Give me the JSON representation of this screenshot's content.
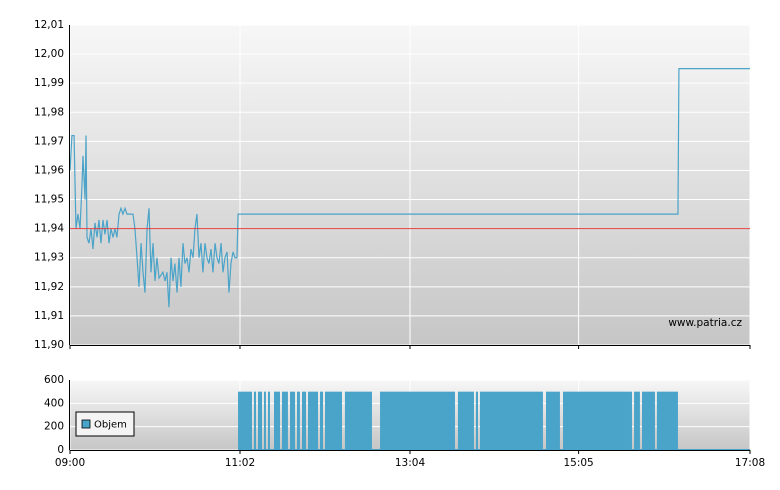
{
  "chart_data": [
    {
      "type": "line",
      "x": [
        0,
        1.4,
        2.9,
        4.3,
        5.7,
        7.2,
        8.6,
        9.3,
        10.8,
        11.5,
        12.2,
        13.6,
        15.1,
        16.5,
        17.9,
        19.4,
        20.8,
        22.2,
        23.7,
        25.1,
        26.6,
        28.0,
        29.4,
        30.9,
        32.3,
        33.7,
        35.2,
        36.6,
        38.0,
        39.5,
        40.9,
        45.2,
        46.6,
        48.1,
        49.5,
        51.0,
        52.4,
        53.8,
        55.3,
        56.7,
        58.1,
        59.6,
        61.0,
        62.4,
        63.9,
        66.7,
        68.2,
        69.6,
        71.0,
        72.5,
        73.9,
        75.3,
        76.8,
        78.2,
        79.6,
        81.1,
        82.5,
        84.0,
        85.4,
        86.8,
        88.3,
        89.7,
        91.1,
        92.6,
        94.0,
        95.4,
        96.9,
        98.3,
        99.7,
        101.2,
        102.6,
        104.1,
        105.5,
        106.9,
        108.4,
        109.8,
        111.2,
        112.7,
        114.1,
        115.5,
        117.0,
        118.4,
        119.8,
        120.6,
        436.3,
        437.0,
        488
      ],
      "series": [
        {
          "color": "#4aa3c8",
          "values": [
            11.96,
            11.972,
            11.972,
            11.94,
            11.945,
            11.94,
            11.955,
            11.965,
            11.95,
            11.972,
            11.937,
            11.935,
            11.94,
            11.933,
            11.942,
            11.937,
            11.943,
            11.935,
            11.943,
            11.938,
            11.943,
            11.935,
            11.94,
            11.937,
            11.94,
            11.937,
            11.945,
            11.947,
            11.945,
            11.947,
            11.945,
            11.945,
            11.94,
            11.93,
            11.92,
            11.935,
            11.925,
            11.918,
            11.94,
            11.947,
            11.925,
            11.935,
            11.922,
            11.93,
            11.923,
            11.925,
            11.922,
            11.925,
            11.913,
            11.93,
            11.922,
            11.928,
            11.918,
            11.93,
            11.92,
            11.935,
            11.928,
            11.93,
            11.925,
            11.933,
            11.93,
            11.94,
            11.945,
            11.93,
            11.935,
            11.925,
            11.935,
            11.93,
            11.928,
            11.933,
            11.925,
            11.935,
            11.93,
            11.928,
            11.935,
            11.925,
            11.93,
            11.932,
            11.918,
            11.928,
            11.932,
            11.93,
            11.93,
            11.945,
            11.945,
            11.995,
            11.995
          ]
        }
      ],
      "reference": {
        "value": 11.94,
        "color": "#e03c3c"
      },
      "xlim": [
        0,
        488
      ],
      "ylim": [
        11.9,
        12.01
      ],
      "yticks": [
        {
          "value": 11.9,
          "label": "11,90"
        },
        {
          "value": 11.91,
          "label": "11,91"
        },
        {
          "value": 11.92,
          "label": "11,92"
        },
        {
          "value": 11.93,
          "label": "11,93"
        },
        {
          "value": 11.94,
          "label": "11,94"
        },
        {
          "value": 11.95,
          "label": "11,95"
        },
        {
          "value": 11.96,
          "label": "11,96"
        },
        {
          "value": 11.97,
          "label": "11,97"
        },
        {
          "value": 11.98,
          "label": "11,98"
        },
        {
          "value": 11.99,
          "label": "11,99"
        },
        {
          "value": 12.0,
          "label": "12,00"
        },
        {
          "value": 12.01,
          "label": "12,01"
        }
      ],
      "annotation": "www.patria.cz",
      "grid": true
    },
    {
      "type": "step-bar",
      "x": [
        120.6,
        130.6,
        132.0,
        133.5,
        134.9,
        137.8,
        139.2,
        140.6,
        142.1,
        143.5,
        146.4,
        150.7,
        152.1,
        156.4,
        157.9,
        161.5,
        162.9,
        165.0,
        166.5,
        169.4,
        170.8,
        178.0,
        179.4,
        181.6,
        183.0,
        195.2,
        197.3,
        216.7,
        222.5,
        276.3,
        278.4,
        289.9,
        291.3,
        292.8,
        294.2,
        339.4,
        341.6,
        351.6,
        353.8,
        403.3,
        404.8,
        409.0,
        410.5,
        419.8,
        421.2,
        436.3,
        488
      ],
      "series": [
        {
          "name": "Objem",
          "color": "#4aa3c8",
          "values": [
            500,
            0,
            500,
            0,
            500,
            0,
            500,
            0,
            500,
            0,
            500,
            0,
            500,
            0,
            500,
            0,
            500,
            0,
            500,
            0,
            500,
            0,
            500,
            0,
            500,
            0,
            500,
            0,
            500,
            0,
            500,
            0,
            500,
            0,
            500,
            0,
            500,
            0,
            500,
            0,
            500,
            0,
            500,
            0,
            500,
            0,
            0
          ]
        }
      ],
      "xlim": [
        0,
        488
      ],
      "xticks": [
        {
          "value": 0,
          "label": "09:00"
        },
        {
          "value": 122,
          "label": "11:02"
        },
        {
          "value": 244,
          "label": "13:04"
        },
        {
          "value": 365,
          "label": "15:05"
        },
        {
          "value": 488,
          "label": "17:08"
        }
      ],
      "ylim": [
        0,
        600
      ],
      "yticks": [
        0,
        200,
        400,
        600
      ],
      "legend": "lower-left",
      "grid": true
    }
  ]
}
